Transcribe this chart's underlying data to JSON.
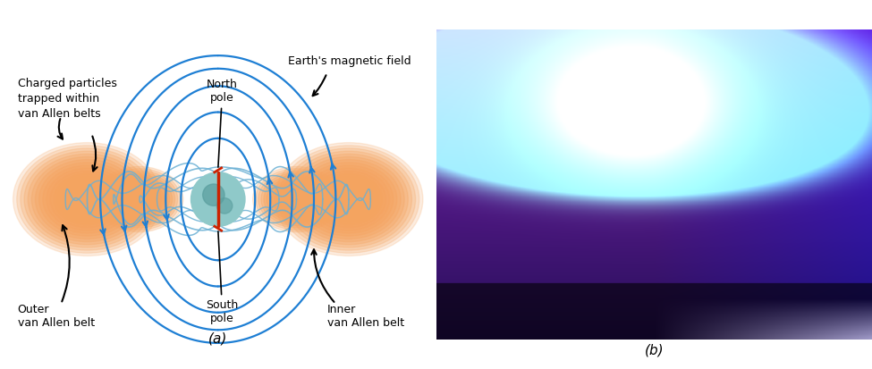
{
  "fig_width": 9.75,
  "fig_height": 4.13,
  "bg_color": "#ffffff",
  "label_a": "(a)",
  "label_b": "(b)",
  "text_north_pole": "North\npole",
  "text_south_pole": "South\npole",
  "text_outer": "Outer\nvan Allen belt",
  "text_inner": "Inner\nvan Allen belt",
  "text_charged": "Charged particles\ntrapped within\nvan Allen belts",
  "text_field": "Earth's magnetic field",
  "belt_color_inner": "#f4a460",
  "belt_color_outer": "#f4a460",
  "belt_alpha": 0.55,
  "field_line_color": "#1e7fd4",
  "helix_color": "#6ab0d4",
  "earth_color": "#8fc9c9",
  "pole_line_color": "#cc2200",
  "arrow_color": "#000000",
  "font_size": 9
}
